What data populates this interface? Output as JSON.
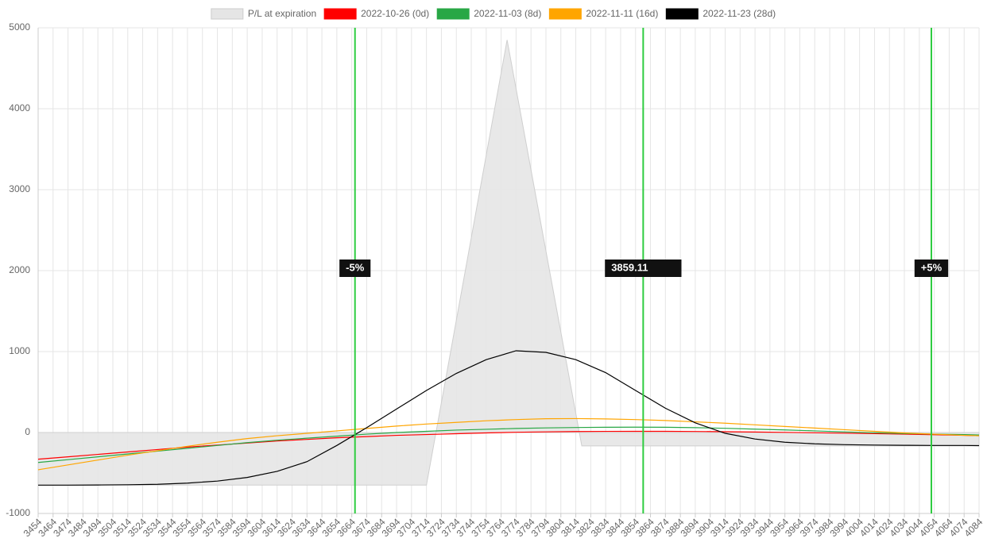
{
  "chart_data": {
    "type": "line",
    "x": [
      3454,
      3474,
      3494,
      3514,
      3534,
      3554,
      3574,
      3594,
      3614,
      3634,
      3654,
      3674,
      3694,
      3714,
      3734,
      3754,
      3774,
      3794,
      3814,
      3834,
      3854,
      3874,
      3894,
      3914,
      3934,
      3954,
      3974,
      3994,
      4014,
      4034,
      4054,
      4074,
      4084
    ],
    "series": [
      {
        "name": "P/L at expiration",
        "color": "#e5e5e5",
        "area": true,
        "x": [
          3454,
          3714,
          3768,
          3818,
          4084
        ],
        "values": [
          -650,
          -650,
          4850,
          -165,
          -165
        ]
      },
      {
        "name": "2022-10-26 (0d)",
        "color": "#ff0000",
        "values": [
          -330,
          -300,
          -270,
          -240,
          -210,
          -180,
          -155,
          -130,
          -105,
          -85,
          -65,
          -50,
          -35,
          -25,
          -15,
          -5,
          3,
          8,
          12,
          14,
          15,
          15,
          13,
          10,
          6,
          2,
          -3,
          -8,
          -14,
          -20,
          -27,
          -35,
          -40
        ]
      },
      {
        "name": "2022-11-03 (8d)",
        "color": "#28a745",
        "values": [
          -370,
          -335,
          -300,
          -265,
          -230,
          -195,
          -160,
          -125,
          -95,
          -70,
          -45,
          -20,
          0,
          15,
          30,
          40,
          50,
          57,
          62,
          65,
          66,
          65,
          60,
          52,
          42,
          32,
          20,
          8,
          -3,
          -12,
          -20,
          -26,
          -30
        ]
      },
      {
        "name": "2022-11-11 (16d)",
        "color": "#ffa500",
        "values": [
          -460,
          -400,
          -340,
          -280,
          -225,
          -170,
          -120,
          -75,
          -40,
          -10,
          20,
          50,
          80,
          105,
          125,
          145,
          160,
          170,
          172,
          168,
          160,
          148,
          132,
          115,
          95,
          75,
          55,
          35,
          15,
          -5,
          -20,
          -35,
          -40
        ]
      },
      {
        "name": "2022-11-23 (28d)",
        "color": "#000000",
        "values": [
          -650,
          -650,
          -648,
          -645,
          -640,
          -625,
          -600,
          -555,
          -480,
          -360,
          -160,
          60,
          290,
          520,
          730,
          900,
          1010,
          990,
          900,
          740,
          520,
          300,
          120,
          -10,
          -80,
          -120,
          -140,
          -150,
          -155,
          -158,
          -160,
          -160,
          -162
        ]
      }
    ],
    "annotations": [
      {
        "x": 3666.15,
        "label": "-5%"
      },
      {
        "x": 3859.11,
        "label": "3859.11"
      },
      {
        "x": 4052.07,
        "label": "+5%"
      }
    ],
    "annotation_color": "#2ecc40",
    "xlim": [
      3454,
      4084
    ],
    "xticks": [
      3454,
      3464,
      3474,
      3484,
      3494,
      3504,
      3514,
      3524,
      3534,
      3544,
      3554,
      3564,
      3574,
      3584,
      3594,
      3604,
      3614,
      3624,
      3634,
      3644,
      3654,
      3664,
      3674,
      3684,
      3694,
      3704,
      3714,
      3724,
      3734,
      3744,
      3754,
      3764,
      3774,
      3784,
      3794,
      3804,
      3814,
      3824,
      3834,
      3844,
      3854,
      3864,
      3874,
      3884,
      3894,
      3904,
      3914,
      3924,
      3934,
      3944,
      3954,
      3964,
      3974,
      3984,
      3994,
      4004,
      4014,
      4024,
      4034,
      4044,
      4054,
      4064,
      4074,
      4084
    ],
    "ylim": [
      -1000,
      5000
    ],
    "yticks": [
      -1000,
      0,
      1000,
      2000,
      3000,
      4000,
      5000
    ],
    "grid": true,
    "legend": "top"
  }
}
